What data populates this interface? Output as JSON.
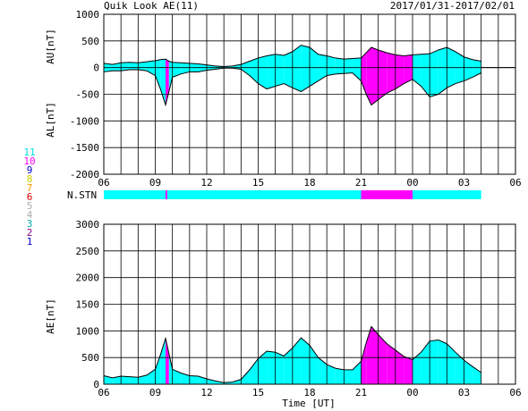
{
  "header": {
    "title": "Quik Look AE(11)",
    "date_range": "2017/01/31-2017/02/01"
  },
  "colors": {
    "fill_cyan": "#00ffff",
    "fill_magenta": "#ff00ff",
    "frame": "#000000"
  },
  "stations_legend": [
    {
      "num": "11",
      "color": "#00e0e0"
    },
    {
      "num": "10",
      "color": "#ff00ff"
    },
    {
      "num": "9",
      "color": "#0000cc"
    },
    {
      "num": "8",
      "color": "#cccc00"
    },
    {
      "num": "7",
      "color": "#ff9900"
    },
    {
      "num": "6",
      "color": "#dd0000"
    },
    {
      "num": "5",
      "color": "#aaaaaa"
    },
    {
      "num": "4",
      "color": "#aaaaaa"
    },
    {
      "num": "3",
      "color": "#00aaaa"
    },
    {
      "num": "2",
      "color": "#880088"
    },
    {
      "num": "1",
      "color": "#0000cc"
    }
  ],
  "station_bar": {
    "label": "N.STN",
    "segments": [
      {
        "from": 6.0,
        "to": 9.6,
        "color": "#00ffff"
      },
      {
        "from": 9.6,
        "to": 9.7,
        "color": "#ff00ff"
      },
      {
        "from": 9.7,
        "to": 21.0,
        "color": "#00ffff"
      },
      {
        "from": 21.0,
        "to": 24.0,
        "color": "#ff00ff"
      },
      {
        "from": 24.0,
        "to": 28.0,
        "color": "#00ffff"
      }
    ]
  },
  "chart_data": [
    {
      "type": "area",
      "name": "AU/AL",
      "ylabel_top": "AU[nT]",
      "ylabel_bottom": "AL[nT]",
      "ylim": [
        -2000,
        1000
      ],
      "yticks": [
        "1000",
        "500",
        "0",
        "-500",
        "-1000",
        "-1500",
        "-2000"
      ],
      "xticks": [
        "06",
        "09",
        "12",
        "15",
        "18",
        "21",
        "00",
        "03",
        "06"
      ],
      "x_hours": [
        6.0,
        6.5,
        7.0,
        7.5,
        8.0,
        8.5,
        9.0,
        9.3,
        9.6,
        9.8,
        10.0,
        10.5,
        11.0,
        11.5,
        12.0,
        12.5,
        13.0,
        13.5,
        14.0,
        14.5,
        15.0,
        15.5,
        16.0,
        16.5,
        17.0,
        17.5,
        18.0,
        18.5,
        19.0,
        19.5,
        20.0,
        20.5,
        21.0,
        21.3,
        21.6,
        22.0,
        22.5,
        23.0,
        23.5,
        24.0,
        24.5,
        25.0,
        25.5,
        26.0,
        26.5,
        27.0,
        27.5,
        28.0
      ],
      "au": [
        80,
        60,
        90,
        100,
        90,
        110,
        130,
        150,
        160,
        120,
        100,
        90,
        80,
        70,
        50,
        30,
        20,
        30,
        60,
        120,
        180,
        220,
        250,
        230,
        300,
        420,
        380,
        250,
        220,
        180,
        160,
        170,
        180,
        280,
        380,
        330,
        280,
        240,
        220,
        240,
        250,
        260,
        330,
        380,
        300,
        200,
        150,
        120
      ],
      "al": [
        -80,
        -60,
        -60,
        -40,
        -40,
        -60,
        -150,
        -400,
        -700,
        -450,
        -180,
        -120,
        -80,
        -80,
        -50,
        -30,
        -10,
        -10,
        -30,
        -150,
        -300,
        -400,
        -350,
        -300,
        -380,
        -450,
        -350,
        -250,
        -150,
        -120,
        -110,
        -100,
        -250,
        -500,
        -700,
        -600,
        -480,
        -400,
        -300,
        -220,
        -350,
        -550,
        -500,
        -380,
        -300,
        -250,
        -180,
        -100
      ]
    },
    {
      "type": "area",
      "name": "AE",
      "ylabel": "AE[nT]",
      "xlabel": "Time [UT]",
      "ylim": [
        0,
        3000
      ],
      "yticks": [
        "3000",
        "2500",
        "2000",
        "1500",
        "1000",
        "500",
        "0"
      ],
      "xticks": [
        "06",
        "09",
        "12",
        "15",
        "18",
        "21",
        "00",
        "03",
        "06"
      ],
      "x_hours": [
        6.0,
        6.5,
        7.0,
        7.5,
        8.0,
        8.5,
        9.0,
        9.3,
        9.6,
        9.8,
        10.0,
        10.5,
        11.0,
        11.5,
        12.0,
        12.5,
        13.0,
        13.5,
        14.0,
        14.5,
        15.0,
        15.5,
        16.0,
        16.5,
        17.0,
        17.5,
        18.0,
        18.5,
        19.0,
        19.5,
        20.0,
        20.5,
        21.0,
        21.3,
        21.6,
        22.0,
        22.5,
        23.0,
        23.5,
        24.0,
        24.5,
        25.0,
        25.5,
        26.0,
        26.5,
        27.0,
        27.5,
        28.0
      ],
      "ae": [
        160,
        120,
        150,
        140,
        130,
        170,
        280,
        550,
        860,
        570,
        280,
        210,
        160,
        150,
        100,
        60,
        30,
        40,
        90,
        270,
        480,
        620,
        600,
        530,
        680,
        870,
        730,
        500,
        370,
        300,
        270,
        270,
        430,
        780,
        1080,
        930,
        760,
        640,
        520,
        460,
        600,
        810,
        830,
        760,
        600,
        450,
        330,
        220
      ]
    }
  ]
}
